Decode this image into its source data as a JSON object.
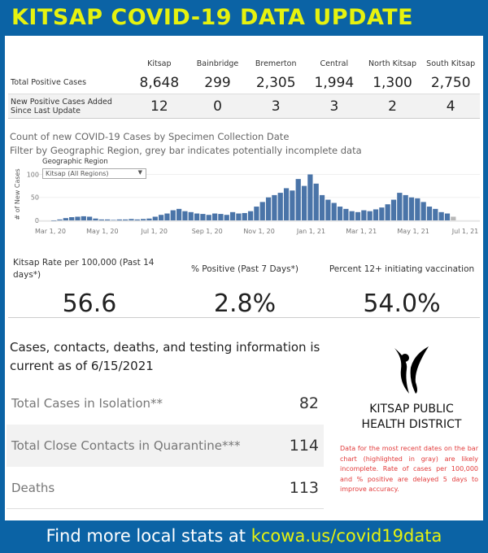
{
  "header": {
    "title": "KITSAP COVID-19 DATA UPDATE"
  },
  "table": {
    "columns": [
      "Kitsap",
      "Bainbridge",
      "Bremerton",
      "Central",
      "North Kitsap",
      "South Kitsap"
    ],
    "rows": [
      {
        "label": "Total Positive Cases",
        "values": [
          "8,648",
          "299",
          "2,305",
          "1,994",
          "1,300",
          "2,750"
        ]
      },
      {
        "label": "New Positive Cases Added Since Last Update",
        "values": [
          "12",
          "0",
          "3",
          "3",
          "2",
          "4"
        ]
      }
    ]
  },
  "chart_title": "Count of new COVID-19 Cases by Specimen Collection Date",
  "chart_subtitle": "Filter by Geographic Region, grey bar indicates potentially incomplete data",
  "filter": {
    "label": "Geographic Region",
    "value": "Kitsap (All Regions)"
  },
  "chart_data": {
    "type": "bar",
    "ylabel": "# of New Cases",
    "ylim": [
      0,
      115
    ],
    "yticks": [
      "0",
      "50",
      "100"
    ],
    "xticks": [
      "Mar 1, 20",
      "May 1, 20",
      "Jul 1, 20",
      "Sep 1, 20",
      "Nov 1, 20",
      "Jan 1, 21",
      "Mar 1, 21",
      "May 1, 21",
      "Jul 1, 21"
    ],
    "xtick_dates": [
      "2020-03-01",
      "2020-05-01",
      "2020-07-01",
      "2020-09-01",
      "2020-11-01",
      "2021-01-01",
      "2021-03-01",
      "2021-05-01",
      "2021-07-01"
    ],
    "bar_color": "#4a74a8",
    "incomplete_color": "#b8b8b8",
    "x": [
      "2020-03-02",
      "2020-03-09",
      "2020-03-16",
      "2020-03-23",
      "2020-03-30",
      "2020-04-06",
      "2020-04-13",
      "2020-04-20",
      "2020-04-27",
      "2020-05-04",
      "2020-05-11",
      "2020-05-18",
      "2020-05-25",
      "2020-06-01",
      "2020-06-08",
      "2020-06-15",
      "2020-06-22",
      "2020-06-29",
      "2020-07-06",
      "2020-07-13",
      "2020-07-20",
      "2020-07-27",
      "2020-08-03",
      "2020-08-10",
      "2020-08-17",
      "2020-08-24",
      "2020-08-31",
      "2020-09-07",
      "2020-09-14",
      "2020-09-21",
      "2020-09-28",
      "2020-10-05",
      "2020-10-12",
      "2020-10-19",
      "2020-10-26",
      "2020-11-02",
      "2020-11-09",
      "2020-11-16",
      "2020-11-23",
      "2020-11-30",
      "2020-12-07",
      "2020-12-14",
      "2020-12-21",
      "2020-12-28",
      "2021-01-04",
      "2021-01-11",
      "2021-01-18",
      "2021-01-25",
      "2021-02-01",
      "2021-02-08",
      "2021-02-15",
      "2021-02-22",
      "2021-03-01",
      "2021-03-08",
      "2021-03-15",
      "2021-03-22",
      "2021-03-29",
      "2021-04-05",
      "2021-04-12",
      "2021-04-19",
      "2021-04-26",
      "2021-05-03",
      "2021-05-10",
      "2021-05-17",
      "2021-05-24",
      "2021-05-31",
      "2021-06-07",
      "2021-06-14"
    ],
    "values": [
      0,
      2,
      5,
      7,
      8,
      9,
      8,
      4,
      2,
      2,
      1,
      2,
      2,
      3,
      2,
      3,
      4,
      8,
      12,
      15,
      22,
      25,
      20,
      18,
      15,
      14,
      12,
      15,
      14,
      12,
      18,
      15,
      16,
      20,
      30,
      40,
      50,
      55,
      60,
      70,
      65,
      90,
      75,
      100,
      80,
      55,
      45,
      38,
      30,
      25,
      20,
      18,
      22,
      20,
      24,
      28,
      35,
      45,
      60,
      55,
      50,
      48,
      40,
      30,
      25,
      18,
      15,
      8
    ]
  },
  "metrics": [
    {
      "label": "Kitsap Rate per 100,000 (Past 14 days*)",
      "value": "56.6"
    },
    {
      "label": "% Positive (Past 7 Days*)",
      "value": "2.8%"
    },
    {
      "label": "Percent 12+ initiating vaccination",
      "value": "54.0%"
    }
  ],
  "info": {
    "title": "Cases, contacts, deaths, and testing information is current as of 6/15/2021"
  },
  "stats": [
    {
      "label": "Total Cases in Isolation**",
      "value": "82"
    },
    {
      "label": "Total Close Contacts in Quarantine***",
      "value": "114"
    },
    {
      "label": "Deaths",
      "value": "113"
    }
  ],
  "logo": {
    "line1": "KITSAP PUBLIC",
    "line2": "HEALTH DISTRICT"
  },
  "note": "Data for the most recent dates on the bar chart (highlighted in gray) are likely incomplete. Rate of cases per 100,000 and % positive are delayed 5 days to improve accuracy.",
  "footer": {
    "text": "Find more local stats at ",
    "link": "kcowa.us/covid19data"
  },
  "colors": {
    "brand_blue": "#0b63a5",
    "header_yellow": "#e6f20f",
    "note_red": "#e23a3a"
  }
}
